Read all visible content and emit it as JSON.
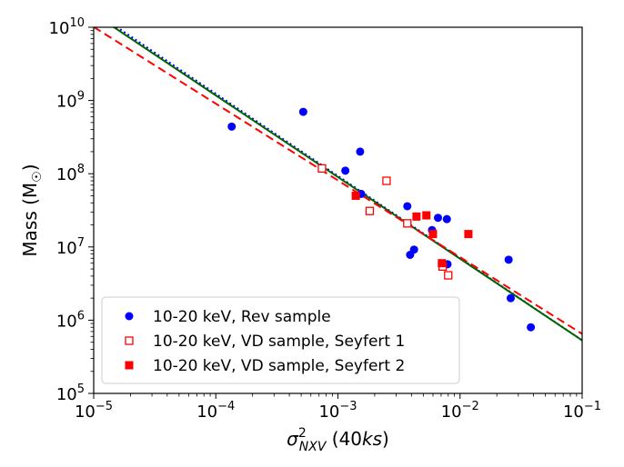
{
  "chart_data": {
    "type": "scatter",
    "title": "",
    "xlabel": "σ²_NXV (40ks)",
    "xlabel_parts": {
      "sigma": "σ",
      "sup": "2",
      "sub": "NXV",
      "rest_open": " (40",
      "rest_italic": "ks",
      "rest_close": ")"
    },
    "ylabel": "Mass (M",
    "ylabel_sub": "☉",
    "ylabel_close": ")",
    "xscale": "log",
    "yscale": "log",
    "xlim": [
      1e-05,
      0.1
    ],
    "ylim": [
      100000.0,
      10000000000.0
    ],
    "x_ticks": [
      {
        "value": 1e-05,
        "base": "10",
        "exp": "−5"
      },
      {
        "value": 0.0001,
        "base": "10",
        "exp": "−4"
      },
      {
        "value": 0.001,
        "base": "10",
        "exp": "−3"
      },
      {
        "value": 0.01,
        "base": "10",
        "exp": "−2"
      },
      {
        "value": 0.1,
        "base": "10",
        "exp": "−1"
      }
    ],
    "y_ticks": [
      {
        "value": 100000.0,
        "base": "10",
        "exp": "5"
      },
      {
        "value": 1000000.0,
        "base": "10",
        "exp": "6"
      },
      {
        "value": 10000000.0,
        "base": "10",
        "exp": "7"
      },
      {
        "value": 100000000.0,
        "base": "10",
        "exp": "8"
      },
      {
        "value": 1000000000.0,
        "base": "10",
        "exp": "9"
      },
      {
        "value": 10000000000.0,
        "base": "10",
        "exp": "10"
      }
    ],
    "legend_position": "lower-left",
    "series": [
      {
        "name": "10-20 keV, Rev sample",
        "marker": "circle-filled",
        "color": "#0000ff",
        "points": [
          [
            0.000135,
            440000000.0
          ],
          [
            0.00052,
            700000000.0
          ],
          [
            0.00115,
            110000000.0
          ],
          [
            0.00152,
            200000000.0
          ],
          [
            0.00155,
            53000000.0
          ],
          [
            0.0037,
            36000000.0
          ],
          [
            0.0039,
            7800000.0
          ],
          [
            0.0042,
            9200000.0
          ],
          [
            0.0059,
            17000000.0
          ],
          [
            0.0066,
            25000000.0
          ],
          [
            0.0078,
            24000000.0
          ],
          [
            0.0079,
            5800000.0
          ],
          [
            0.025,
            6700000.0
          ],
          [
            0.026,
            2000000.0
          ],
          [
            0.038,
            800000.0
          ]
        ]
      },
      {
        "name": "10-20 keV, VD sample, Seyfert 1",
        "marker": "square-open",
        "color": "#ff0000",
        "points": [
          [
            0.00074,
            118000000.0
          ],
          [
            0.00182,
            31000000.0
          ],
          [
            0.0025,
            80000000.0
          ],
          [
            0.0037,
            21000000.0
          ],
          [
            0.0072,
            5400000.0
          ],
          [
            0.008,
            4100000.0
          ]
        ]
      },
      {
        "name": "10-20 keV, VD sample, Seyfert 2",
        "marker": "square-filled",
        "color": "#ff0000",
        "points": [
          [
            0.0014,
            50000000.0
          ],
          [
            0.0044,
            26000000.0
          ],
          [
            0.0053,
            27000000.0
          ],
          [
            0.006,
            15000000.0
          ],
          [
            0.0071,
            6000000.0
          ],
          [
            0.0117,
            15000000.0
          ]
        ]
      }
    ],
    "fit_lines": [
      {
        "name": "fit-rev",
        "style": "dotted",
        "color": "#0000ff",
        "x": [
          1e-05,
          0.1
        ],
        "y": [
          16400000000.0,
          530000.0
        ]
      },
      {
        "name": "fit-all",
        "style": "solid",
        "color": "#006400",
        "x": [
          1e-05,
          0.1
        ],
        "y": [
          15300000000.0,
          530000.0
        ]
      },
      {
        "name": "fit-vd",
        "style": "dashed",
        "color": "#ff0000",
        "x": [
          1e-05,
          0.1
        ],
        "y": [
          10100000000.0,
          650000.0
        ]
      }
    ]
  }
}
